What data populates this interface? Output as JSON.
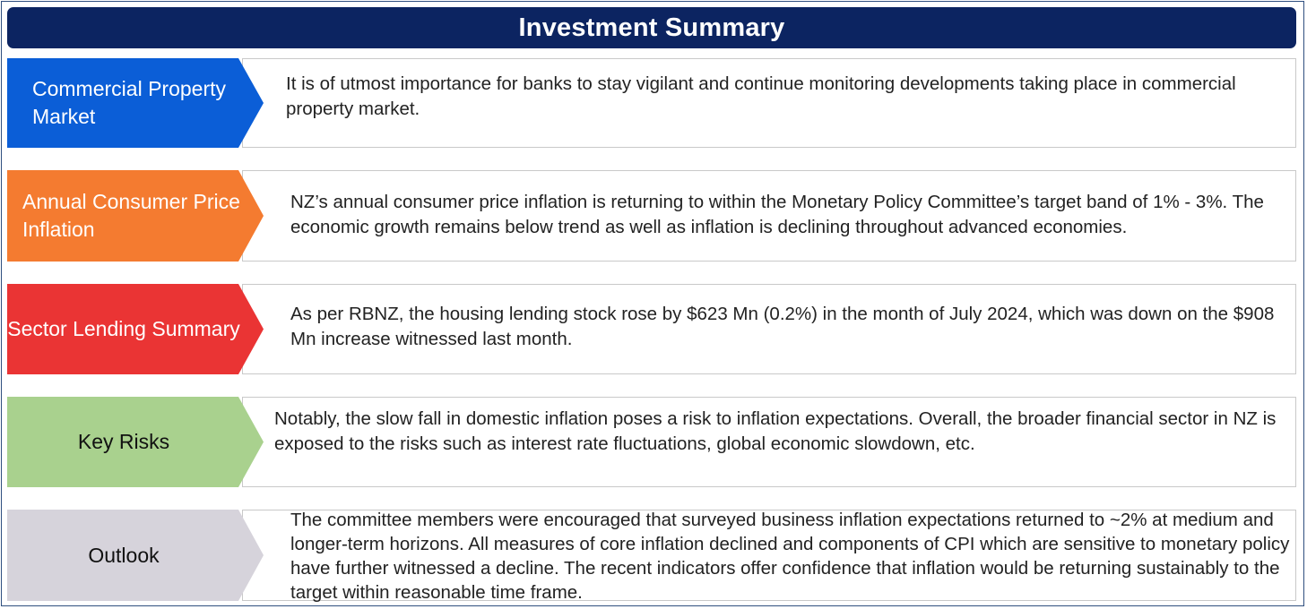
{
  "title": "Investment Summary",
  "rows": [
    {
      "label": "Commercial Property Market",
      "text": "It is of utmost importance for banks to stay vigilant and continue monitoring developments taking place in commercial property market.",
      "color": "#0b5ed7",
      "text_color": "#ffffff"
    },
    {
      "label": "Annual Consumer Price Inflation",
      "text": "NZ’s annual consumer price inflation is returning to within the Monetary Policy Committee’s target band of 1% - 3%. The economic growth remains below trend as well as inflation is declining throughout advanced economies.",
      "color": "#f47b30",
      "text_color": "#ffffff"
    },
    {
      "label": "Sector Lending Summary",
      "text": "As per RBNZ, the housing lending stock rose by $623 Mn (0.2%) in the month of July 2024, which was down on the $908 Mn increase witnessed last month.",
      "color": "#ea3434",
      "text_color": "#ffffff"
    },
    {
      "label": "Key Risks",
      "text": "Notably, the slow fall in domestic inflation poses a risk to inflation expectations. Overall, the broader financial sector in NZ is exposed to the risks such as interest rate fluctuations, global economic slowdown, etc.",
      "color": "#a9d18e",
      "text_color": "#111111"
    },
    {
      "label": "Outlook",
      "text": "The committee members were encouraged that surveyed business inflation expectations returned to ~2% at medium and longer-term horizons. All measures of core inflation declined and components of CPI which are sensitive to monetary policy have further witnessed a decline.  The recent indicators offer confidence that inflation would be returning sustainably to the target within reasonable time frame.",
      "color": "#d6d3db",
      "text_color": "#111111"
    }
  ]
}
